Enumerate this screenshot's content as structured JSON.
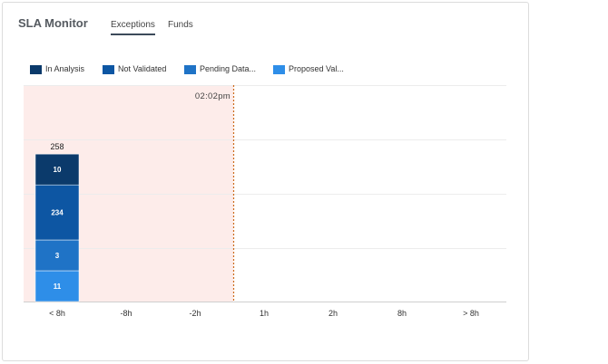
{
  "header": {
    "title": "SLA Monitor",
    "tabs": [
      {
        "label": "Exceptions",
        "active": true
      },
      {
        "label": "Funds",
        "active": false
      }
    ]
  },
  "legend": [
    {
      "label": "In Analysis",
      "color": "#0b3a6b"
    },
    {
      "label": "Not Validated",
      "color": "#0d56a3"
    },
    {
      "label": "Pending Data...",
      "color": "#1f73c6"
    },
    {
      "label": "Proposed Val...",
      "color": "#2e8ee8"
    }
  ],
  "chart_data": {
    "type": "bar",
    "stacked": true,
    "categories": [
      "< 8h",
      "-8h",
      "-2h",
      "1h",
      "2h",
      "8h",
      "> 8h"
    ],
    "series": [
      {
        "name": "In Analysis",
        "values": [
          10,
          0,
          0,
          0,
          0,
          0,
          0
        ]
      },
      {
        "name": "Not Validated",
        "values": [
          234,
          0,
          0,
          0,
          0,
          0,
          0
        ]
      },
      {
        "name": "Pending Data...",
        "values": [
          3,
          0,
          0,
          0,
          0,
          0,
          0
        ]
      },
      {
        "name": "Proposed Val...",
        "values": [
          11,
          0,
          0,
          0,
          0,
          0,
          0
        ]
      }
    ],
    "totals": [
      258,
      0,
      0,
      0,
      0,
      0,
      0
    ],
    "now_marker_label": "02:02pm",
    "overdue_region": "from start to now marker",
    "colors": {
      "overdue_region": "#fdecea",
      "now_marker": "#cc6a1a"
    },
    "grid": true
  }
}
